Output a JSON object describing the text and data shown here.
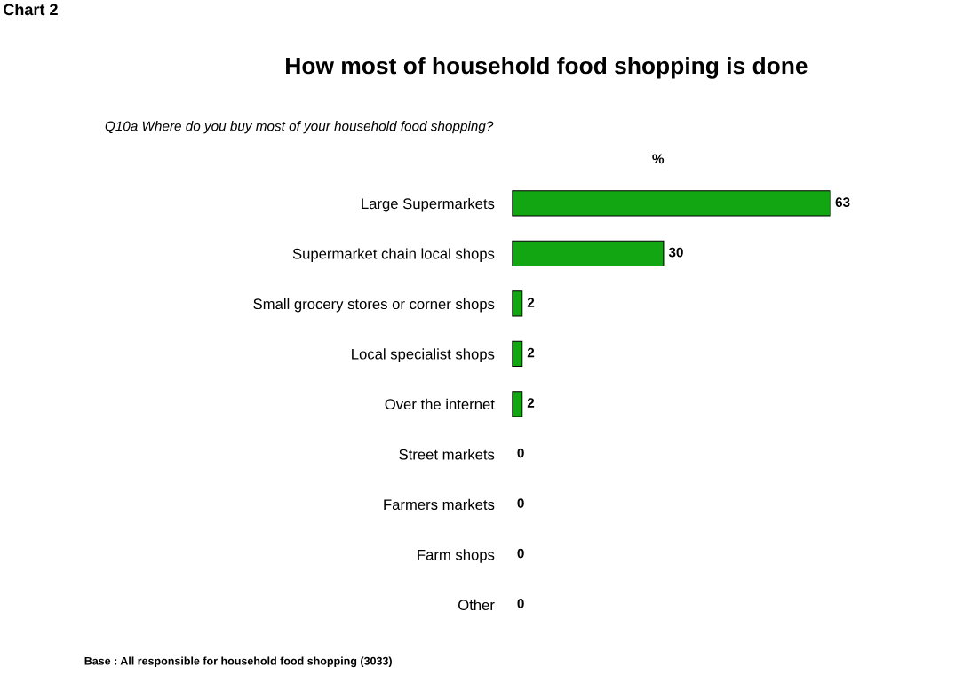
{
  "chart_data": {
    "type": "bar",
    "orientation": "horizontal",
    "title": "How most of household food shopping is done",
    "subtitle": "Q10a Where do you buy most of your household food shopping?",
    "xlabel": "%",
    "categories": [
      "Large Supermarkets",
      "Supermarket chain local shops",
      "Small grocery stores or corner shops",
      "Local specialist shops",
      "Over the internet",
      "Street markets",
      "Farmers markets",
      "Farm shops",
      "Other"
    ],
    "values": [
      63,
      30,
      2,
      2,
      2,
      0,
      0,
      0,
      0
    ],
    "color": "#13a613",
    "data_labels": true,
    "grid": false,
    "legend": false,
    "annotations": [
      "Chart 2",
      "Base : All responsible for household food shopping (3033)"
    ]
  }
}
